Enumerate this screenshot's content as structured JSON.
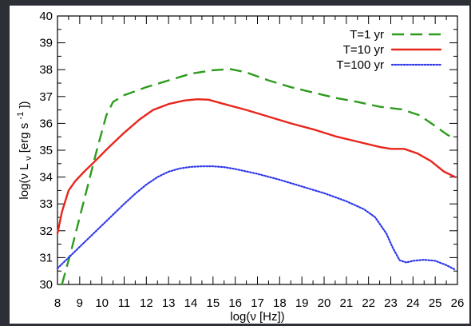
{
  "chart_data": {
    "type": "line",
    "title": "",
    "xlabel": "log(ν [Hz])",
    "ylabel_parts": {
      "prefix": "log(ν L",
      "subscript": "ν",
      "middle": " [erg s",
      "superscript": "-1",
      "suffix": "])"
    },
    "xlim": [
      8,
      26
    ],
    "ylim": [
      30,
      40
    ],
    "xticks": [
      8,
      9,
      10,
      11,
      12,
      13,
      14,
      15,
      16,
      17,
      18,
      19,
      20,
      21,
      22,
      23,
      24,
      25,
      26
    ],
    "yticks": [
      30,
      31,
      32,
      33,
      34,
      35,
      36,
      37,
      38,
      39,
      40
    ],
    "grid": false,
    "legend_position": "top-right",
    "series": [
      {
        "name": "T=1 yr",
        "color": "#2e9b1e",
        "style": "dashed",
        "points": [
          [
            8.2,
            30.0
          ],
          [
            8.6,
            31.2
          ],
          [
            9.0,
            32.5
          ],
          [
            9.4,
            33.8
          ],
          [
            9.8,
            35.1
          ],
          [
            10.2,
            36.3
          ],
          [
            10.5,
            36.8
          ],
          [
            11.0,
            37.05
          ],
          [
            12.0,
            37.35
          ],
          [
            13.0,
            37.6
          ],
          [
            14.0,
            37.85
          ],
          [
            15.0,
            37.98
          ],
          [
            15.8,
            38.02
          ],
          [
            16.5,
            37.9
          ],
          [
            17.5,
            37.6
          ],
          [
            18.5,
            37.35
          ],
          [
            19.5,
            37.15
          ],
          [
            20.5,
            36.95
          ],
          [
            21.5,
            36.8
          ],
          [
            22.5,
            36.62
          ],
          [
            23.5,
            36.52
          ],
          [
            24.3,
            36.3
          ],
          [
            25.0,
            35.9
          ],
          [
            25.5,
            35.6
          ],
          [
            25.9,
            35.4
          ]
        ]
      },
      {
        "name": "T=10 yr",
        "color": "#e8261c",
        "style": "solid",
        "points": [
          [
            8.0,
            31.9
          ],
          [
            8.2,
            32.7
          ],
          [
            8.5,
            33.5
          ],
          [
            8.8,
            33.85
          ],
          [
            9.2,
            34.2
          ],
          [
            9.7,
            34.6
          ],
          [
            10.3,
            35.1
          ],
          [
            11.0,
            35.65
          ],
          [
            11.7,
            36.15
          ],
          [
            12.3,
            36.5
          ],
          [
            13.0,
            36.72
          ],
          [
            13.7,
            36.85
          ],
          [
            14.3,
            36.9
          ],
          [
            14.8,
            36.88
          ],
          [
            15.5,
            36.72
          ],
          [
            16.5,
            36.5
          ],
          [
            17.5,
            36.25
          ],
          [
            18.5,
            36.0
          ],
          [
            19.5,
            35.78
          ],
          [
            20.5,
            35.52
          ],
          [
            21.5,
            35.32
          ],
          [
            22.5,
            35.12
          ],
          [
            23.0,
            35.05
          ],
          [
            23.6,
            35.05
          ],
          [
            24.2,
            34.88
          ],
          [
            24.8,
            34.6
          ],
          [
            25.4,
            34.2
          ],
          [
            25.9,
            34.0
          ]
        ]
      },
      {
        "name": "T=100 yr",
        "color": "#2f39e8",
        "style": "dotted",
        "points": [
          [
            8.0,
            30.6
          ],
          [
            8.5,
            31.0
          ],
          [
            9.0,
            31.4
          ],
          [
            9.5,
            31.8
          ],
          [
            10.0,
            32.2
          ],
          [
            10.5,
            32.6
          ],
          [
            11.0,
            33.0
          ],
          [
            11.5,
            33.38
          ],
          [
            12.0,
            33.72
          ],
          [
            12.5,
            34.0
          ],
          [
            13.0,
            34.2
          ],
          [
            13.5,
            34.32
          ],
          [
            14.0,
            34.38
          ],
          [
            14.5,
            34.4
          ],
          [
            15.0,
            34.4
          ],
          [
            15.5,
            34.37
          ],
          [
            16.0,
            34.3
          ],
          [
            17.0,
            34.12
          ],
          [
            18.0,
            33.9
          ],
          [
            19.0,
            33.65
          ],
          [
            20.0,
            33.4
          ],
          [
            21.0,
            33.1
          ],
          [
            21.8,
            32.8
          ],
          [
            22.3,
            32.5
          ],
          [
            22.8,
            31.9
          ],
          [
            23.1,
            31.35
          ],
          [
            23.4,
            30.9
          ],
          [
            23.7,
            30.82
          ],
          [
            24.0,
            30.88
          ],
          [
            24.5,
            30.92
          ],
          [
            25.0,
            30.88
          ],
          [
            25.5,
            30.72
          ],
          [
            25.9,
            30.55
          ]
        ]
      }
    ]
  }
}
